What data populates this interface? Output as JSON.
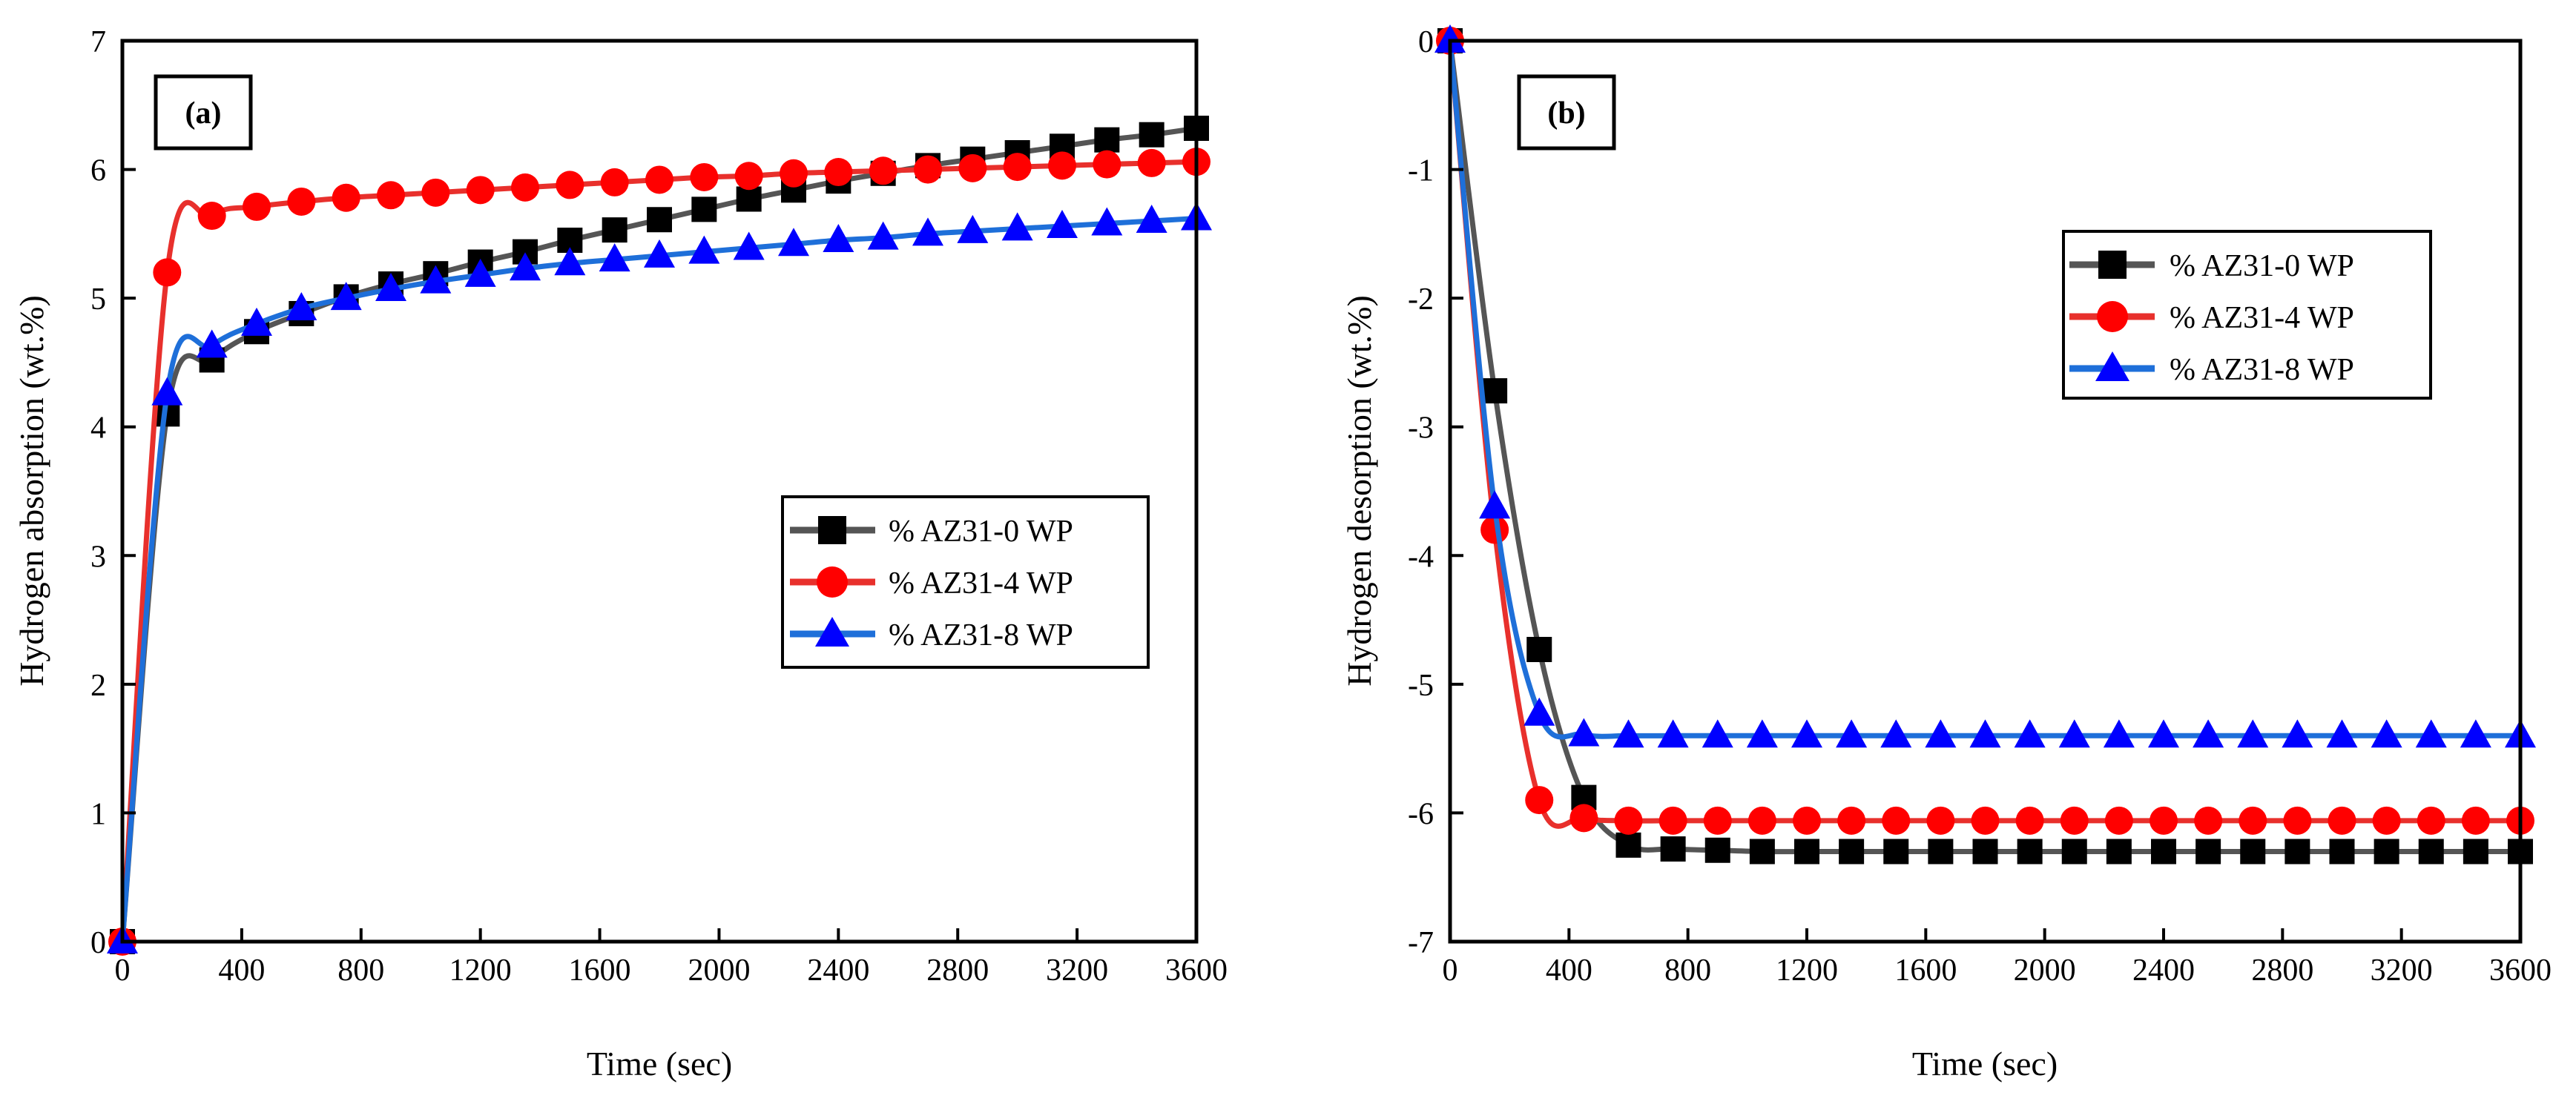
{
  "chart_data": [
    {
      "id": "a",
      "type": "line",
      "panel_label": "(a)",
      "xlabel": "Time (sec)",
      "ylabel": "Hydrogen absorption (wt.%)",
      "xlim": [
        0,
        3600
      ],
      "ylim": [
        0,
        7
      ],
      "xticks": [
        0,
        400,
        800,
        1200,
        1600,
        2000,
        2400,
        2800,
        3200,
        3600
      ],
      "yticks": [
        0,
        1,
        2,
        3,
        4,
        5,
        6,
        7
      ],
      "legend_position": "center-right",
      "grid": false,
      "series": [
        {
          "name": "% AZ31-0 WP",
          "color": "#555555",
          "marker": "square",
          "marker_color": "#000000",
          "x": [
            0,
            150,
            300,
            450,
            600,
            750,
            900,
            1050,
            1200,
            1350,
            1500,
            1650,
            1800,
            1950,
            2100,
            2250,
            2400,
            2550,
            2700,
            2850,
            3000,
            3150,
            3300,
            3450,
            3600
          ],
          "y": [
            0,
            4.1,
            4.52,
            4.74,
            4.88,
            5.01,
            5.11,
            5.19,
            5.28,
            5.36,
            5.45,
            5.53,
            5.61,
            5.69,
            5.77,
            5.84,
            5.91,
            5.97,
            6.03,
            6.08,
            6.13,
            6.18,
            6.23,
            6.27,
            6.32
          ]
        },
        {
          "name": "% AZ31-4 WP",
          "color": "#e8302c",
          "marker": "circle",
          "marker_color": "#ff0000",
          "x": [
            0,
            150,
            300,
            450,
            600,
            750,
            900,
            1050,
            1200,
            1350,
            1500,
            1650,
            1800,
            1950,
            2100,
            2250,
            2400,
            2550,
            2700,
            2850,
            3000,
            3150,
            3300,
            3450,
            3600
          ],
          "y": [
            0,
            5.2,
            5.64,
            5.71,
            5.75,
            5.78,
            5.8,
            5.82,
            5.84,
            5.86,
            5.88,
            5.9,
            5.92,
            5.94,
            5.95,
            5.97,
            5.98,
            5.99,
            6.0,
            6.01,
            6.02,
            6.03,
            6.04,
            6.05,
            6.06
          ]
        },
        {
          "name": "% AZ31-8 WP",
          "color": "#1e6fd9",
          "marker": "triangle",
          "marker_color": "#0000ff",
          "x": [
            0,
            150,
            300,
            450,
            600,
            750,
            900,
            1050,
            1200,
            1350,
            1500,
            1650,
            1800,
            1950,
            2100,
            2250,
            2400,
            2550,
            2700,
            2850,
            3000,
            3150,
            3300,
            3450,
            3600
          ],
          "y": [
            0,
            4.26,
            4.63,
            4.8,
            4.92,
            5.0,
            5.07,
            5.13,
            5.18,
            5.23,
            5.27,
            5.3,
            5.33,
            5.36,
            5.39,
            5.42,
            5.45,
            5.47,
            5.5,
            5.52,
            5.54,
            5.56,
            5.58,
            5.6,
            5.62
          ]
        }
      ]
    },
    {
      "id": "b",
      "type": "line",
      "panel_label": "(b)",
      "xlabel": "Time (sec)",
      "ylabel": "Hydrogen desorption (wt.%)",
      "xlim": [
        0,
        3600
      ],
      "ylim": [
        -7,
        0
      ],
      "xticks": [
        0,
        400,
        800,
        1200,
        1600,
        2000,
        2400,
        2800,
        3200,
        3600
      ],
      "yticks": [
        0,
        -1,
        -2,
        -3,
        -4,
        -5,
        -6,
        -7
      ],
      "legend_position": "top-right",
      "grid": false,
      "series": [
        {
          "name": "% AZ31-0 WP",
          "color": "#555555",
          "marker": "square",
          "marker_color": "#000000",
          "x": [
            0,
            150,
            300,
            450,
            600,
            750,
            900,
            1050,
            1200,
            1350,
            1500,
            1650,
            1800,
            1950,
            2100,
            2250,
            2400,
            2550,
            2700,
            2850,
            3000,
            3150,
            3300,
            3450,
            3600
          ],
          "y": [
            0,
            -2.72,
            -4.73,
            -5.88,
            -6.25,
            -6.28,
            -6.29,
            -6.3,
            -6.3,
            -6.3,
            -6.3,
            -6.3,
            -6.3,
            -6.3,
            -6.3,
            -6.3,
            -6.3,
            -6.3,
            -6.3,
            -6.3,
            -6.3,
            -6.3,
            -6.3,
            -6.3,
            -6.3
          ]
        },
        {
          "name": "% AZ31-4 WP",
          "color": "#e8302c",
          "marker": "circle",
          "marker_color": "#ff0000",
          "x": [
            0,
            150,
            300,
            450,
            600,
            750,
            900,
            1050,
            1200,
            1350,
            1500,
            1650,
            1800,
            1950,
            2100,
            2250,
            2400,
            2550,
            2700,
            2850,
            3000,
            3150,
            3300,
            3450,
            3600
          ],
          "y": [
            0,
            -3.8,
            -5.9,
            -6.04,
            -6.06,
            -6.06,
            -6.06,
            -6.06,
            -6.06,
            -6.06,
            -6.06,
            -6.06,
            -6.06,
            -6.06,
            -6.06,
            -6.06,
            -6.06,
            -6.06,
            -6.06,
            -6.06,
            -6.06,
            -6.06,
            -6.06,
            -6.06,
            -6.06
          ]
        },
        {
          "name": "% AZ31-8 WP",
          "color": "#1e6fd9",
          "marker": "triangle",
          "marker_color": "#0000ff",
          "x": [
            0,
            150,
            300,
            450,
            600,
            750,
            900,
            1050,
            1200,
            1350,
            1500,
            1650,
            1800,
            1950,
            2100,
            2250,
            2400,
            2550,
            2700,
            2850,
            3000,
            3150,
            3300,
            3450,
            3600
          ],
          "y": [
            0,
            -3.62,
            -5.23,
            -5.39,
            -5.4,
            -5.4,
            -5.4,
            -5.4,
            -5.4,
            -5.4,
            -5.4,
            -5.4,
            -5.4,
            -5.4,
            -5.4,
            -5.4,
            -5.4,
            -5.4,
            -5.4,
            -5.4,
            -5.4,
            -5.4,
            -5.4,
            -5.4,
            -5.4
          ]
        }
      ]
    }
  ]
}
